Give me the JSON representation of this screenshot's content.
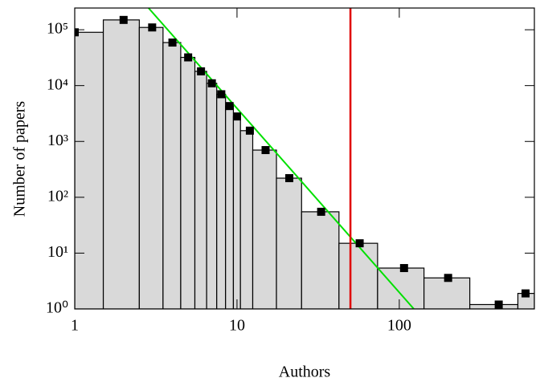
{
  "chart_data": {
    "type": "histogram",
    "x_label": "Authors",
    "y_label": "Number of papers",
    "bins": [
      1,
      1.5,
      2.5,
      3.5,
      4.5,
      5.5,
      6.5,
      7.5,
      8.5,
      9.5,
      10.5,
      12.5,
      17.5,
      25,
      42.5,
      73.5,
      142,
      272,
      538,
      680
    ],
    "values": [
      90000,
      150000,
      110000,
      59000,
      32000,
      18000,
      11000,
      7000,
      4300,
      2800,
      1560,
      700,
      220,
      55,
      15,
      5.4,
      3.6,
      1.2,
      1.9
    ],
    "bar_color": "#d9d9d9",
    "points": {
      "x": [
        1,
        2,
        3,
        4,
        5,
        6,
        7,
        8,
        9,
        10,
        12,
        15,
        21,
        33,
        57,
        107,
        200,
        410,
        600
      ],
      "values": [
        90000,
        150000,
        110000,
        59000,
        32000,
        18000,
        11000,
        7000,
        4300,
        2800,
        1560,
        700,
        220,
        55,
        15,
        5.4,
        3.6,
        1.2,
        1.9
      ],
      "color": "#000000"
    },
    "fit": {
      "x": [
        2.85,
        123
      ],
      "values": [
        245000,
        1
      ],
      "color": "#00e000"
    },
    "vline": {
      "x": 50,
      "color": "#e00000"
    },
    "xlim": [
      1,
      680
    ],
    "ylim": [
      1,
      245000
    ],
    "xlog": true,
    "ylog": true,
    "xticks": [
      1,
      10,
      100
    ],
    "yticks": [
      {
        "value": 1,
        "label": "10⁰"
      },
      {
        "value": 10,
        "label": "10¹"
      },
      {
        "value": 100,
        "label": "10²"
      },
      {
        "value": 1000,
        "label": "10³"
      },
      {
        "value": 10000,
        "label": "10⁴"
      },
      {
        "value": 100000,
        "label": "10⁵"
      }
    ]
  }
}
